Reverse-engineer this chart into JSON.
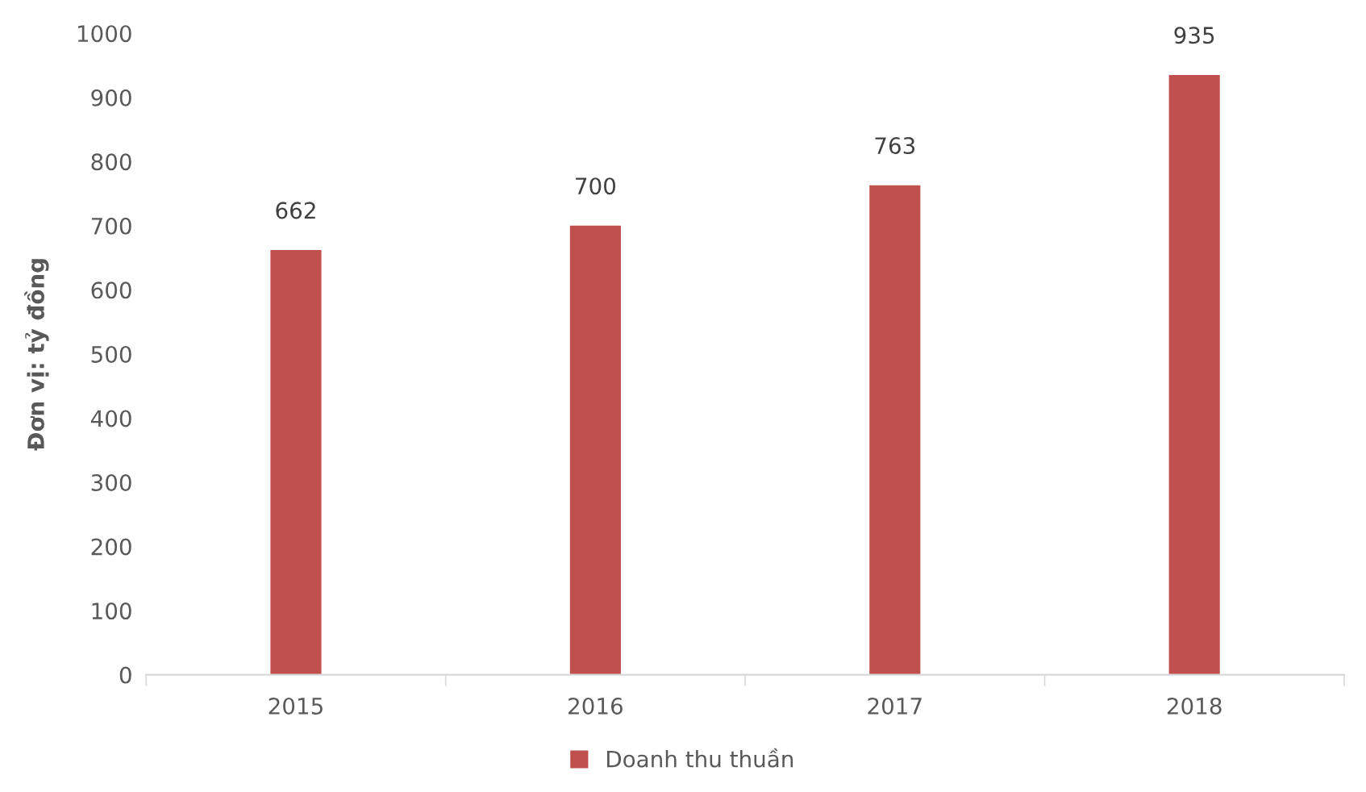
{
  "chart_data": {
    "type": "bar",
    "ylabel": "Đơn vị: tỷ đồng",
    "categories": [
      "2015",
      "2016",
      "2017",
      "2018"
    ],
    "series": [
      {
        "name": "Doanh thu thuần",
        "color": "#c0504d",
        "values": [
          662,
          700,
          763,
          935
        ]
      }
    ],
    "ylim": [
      0,
      1000
    ],
    "yticks": [
      0,
      100,
      200,
      300,
      400,
      500,
      600,
      700,
      800,
      900,
      1000
    ],
    "grid": false,
    "legend": "bottom",
    "data_labels": true
  }
}
